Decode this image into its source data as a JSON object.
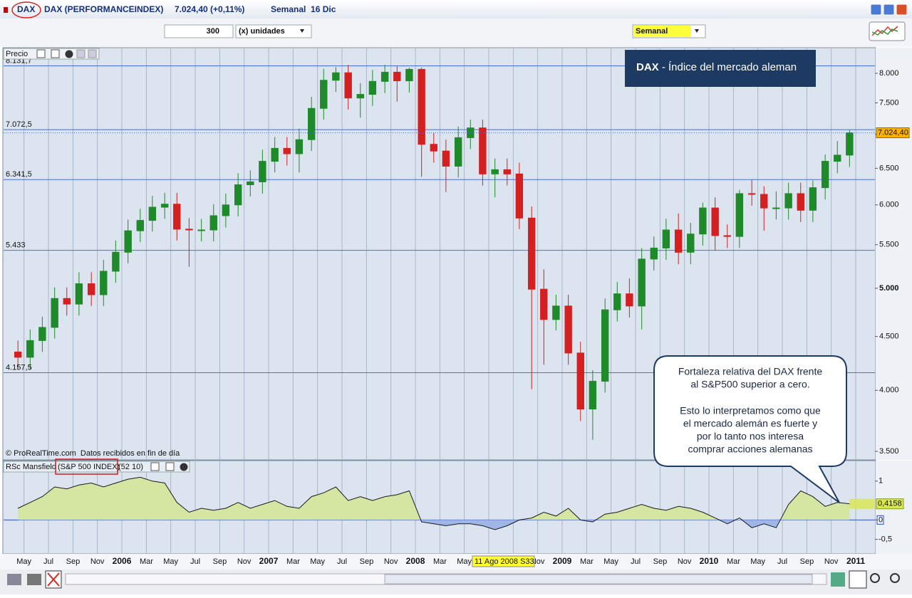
{
  "window": {
    "symbol": "DAX",
    "name": "DAX (PERFORMANCEINDEX)",
    "quote": "7.024,40 (+0,11%)",
    "period": "Semanal  16 Dic"
  },
  "toolbar": {
    "units_value": "300",
    "units_label": "(x) unidades",
    "timeframe": "Semanal"
  },
  "annotations": {
    "title_bold": "DAX",
    "title_rest": " - Índice del mercado aleman",
    "callout": [
      [
        "Fortaleza relativa del DAX frente",
        "al S&P500 superior a cero."
      ],
      [
        "Esto lo interpretamos como que",
        "el mercado alemán es fuerte y",
        "por lo tanto nos interesa",
        "comprar acciones alemanas"
      ]
    ]
  },
  "chart_data": [
    {
      "type": "candlestick",
      "panel_label": "Precio",
      "source": "© ProRealTime.com  Datos recibidos en fin de día",
      "cursor_label": "11 Ago 2008 S33",
      "x": [
        2005.292,
        2005.375,
        2005.458,
        2005.542,
        2005.625,
        2005.708,
        2005.792,
        2005.875,
        2005.958,
        2006.042,
        2006.125,
        2006.208,
        2006.292,
        2006.375,
        2006.458,
        2006.542,
        2006.625,
        2006.708,
        2006.792,
        2006.875,
        2006.958,
        2007.042,
        2007.125,
        2007.208,
        2007.292,
        2007.375,
        2007.458,
        2007.542,
        2007.625,
        2007.708,
        2007.792,
        2007.875,
        2007.958,
        2008.042,
        2008.125,
        2008.208,
        2008.292,
        2008.375,
        2008.458,
        2008.542,
        2008.625,
        2008.708,
        2008.792,
        2008.875,
        2008.958,
        2009.042,
        2009.125,
        2009.208,
        2009.292,
        2009.375,
        2009.458,
        2009.542,
        2009.625,
        2009.708,
        2009.792,
        2009.875,
        2009.958,
        2010.042,
        2010.125,
        2010.208,
        2010.292,
        2010.375,
        2010.458,
        2010.542,
        2010.625,
        2010.708,
        2010.792,
        2010.875,
        2010.958
      ],
      "open": [
        4350,
        4300,
        4460,
        4590,
        4890,
        4830,
        5050,
        4930,
        5190,
        5410,
        5670,
        5800,
        5970,
        6010,
        5690,
        5680,
        5680,
        5860,
        6000,
        6270,
        6310,
        6600,
        6790,
        6710,
        6920,
        7410,
        7880,
        8010,
        7580,
        7640,
        7860,
        8020,
        7870,
        8070,
        6850,
        6750,
        6530,
        6950,
        7100,
        6420,
        6480,
        6420,
        5830,
        4990,
        4670,
        4810,
        4340,
        3840,
        4080,
        4770,
        4940,
        4810,
        5330,
        5460,
        5680,
        5410,
        5630,
        5960,
        5610,
        5600,
        6150,
        6140,
        5960,
        5960,
        6150,
        5930,
        6230,
        6600,
        6690
      ],
      "high": [
        4460,
        4570,
        4700,
        5010,
        5010,
        5180,
        5180,
        5320,
        5550,
        5810,
        5950,
        6120,
        6160,
        6160,
        5830,
        5820,
        6010,
        6150,
        6430,
        6470,
        6770,
        6960,
        6960,
        7090,
        7600,
        8080,
        8110,
        8150,
        7830,
        8060,
        8150,
        8130,
        8100,
        8100,
        7020,
        6920,
        7120,
        7230,
        7230,
        6640,
        6640,
        6580,
        5980,
        5210,
        4930,
        4930,
        4450,
        4180,
        4890,
        5070,
        5110,
        5460,
        5600,
        5820,
        5890,
        5770,
        6030,
        6100,
        5750,
        6200,
        6340,
        6250,
        6180,
        6300,
        6300,
        6330,
        6700,
        6900,
        7070
      ],
      "low": [
        4190,
        4190,
        4350,
        4480,
        4710,
        4710,
        4810,
        4810,
        5060,
        5280,
        5530,
        5660,
        5820,
        5550,
        5240,
        5540,
        5540,
        5710,
        5850,
        6110,
        6150,
        6440,
        6540,
        6440,
        6750,
        7230,
        7680,
        7390,
        7260,
        7450,
        7660,
        7520,
        7670,
        6380,
        6580,
        6170,
        6370,
        6780,
        6260,
        6100,
        6260,
        5690,
        4010,
        4230,
        4560,
        4230,
        3740,
        3590,
        3980,
        4650,
        4690,
        4570,
        5200,
        5320,
        5270,
        5270,
        5490,
        5430,
        5460,
        5460,
        5990,
        5670,
        5810,
        5810,
        5780,
        5780,
        6070,
        6430,
        6520
      ],
      "close": [
        4300,
        4460,
        4590,
        4890,
        4830,
        5050,
        4930,
        5190,
        5410,
        5670,
        5800,
        5970,
        6010,
        5690,
        5680,
        5680,
        5860,
        6000,
        6270,
        6310,
        6600,
        6790,
        6710,
        6920,
        7410,
        7880,
        8010,
        7580,
        7640,
        7860,
        8020,
        7870,
        8070,
        6850,
        6750,
        6530,
        6950,
        7100,
        6420,
        6480,
        6420,
        5830,
        4990,
        4670,
        4810,
        4340,
        3840,
        4080,
        4770,
        4940,
        4810,
        5330,
        5460,
        5680,
        5410,
        5630,
        5960,
        5610,
        5600,
        6150,
        6140,
        5960,
        5960,
        6150,
        5930,
        6230,
        6600,
        6690,
        7024.4
      ],
      "xlim": [
        2005.194,
        2011.131
      ],
      "ylim": [
        3441,
        8448
      ],
      "log_scale": true,
      "yticks": [
        {
          "value": 3500,
          "label": "3.500"
        },
        {
          "value": 4000,
          "label": "4.000"
        },
        {
          "value": 4500,
          "label": "4.500"
        },
        {
          "value": 5000,
          "label": "5.000"
        },
        {
          "value": 5500,
          "label": "5.500"
        },
        {
          "value": 6000,
          "label": "6.000"
        },
        {
          "value": 6500,
          "label": "6.500"
        },
        {
          "value": 7000,
          "label": "7.000"
        },
        {
          "value": 7500,
          "label": "7.500"
        },
        {
          "value": 8000,
          "label": "8.000"
        }
      ],
      "levels": [
        {
          "value": 8131.7,
          "label": "8.131,7"
        },
        {
          "value": 7072.5,
          "label": "7.072,5"
        },
        {
          "value": 6341.5,
          "label": "6.341,5"
        },
        {
          "value": 5433,
          "label": "5.433"
        },
        {
          "value": 4157.5,
          "label": "4.157,5"
        }
      ],
      "last_value": {
        "value": 7024.4,
        "label": "7.024,40"
      },
      "up_color": "#1f8a2a",
      "down_color": "#d42020",
      "level_color": "#4a6ee0"
    },
    {
      "type": "area",
      "label": "RSc Mansfield",
      "index": "(S&P 500 INDEX)",
      "params": "(52 10)",
      "x": [
        2005.292,
        2005.375,
        2005.458,
        2005.542,
        2005.625,
        2005.708,
        2005.792,
        2005.875,
        2005.958,
        2006.042,
        2006.125,
        2006.208,
        2006.292,
        2006.375,
        2006.458,
        2006.542,
        2006.625,
        2006.708,
        2006.792,
        2006.875,
        2006.958,
        2007.042,
        2007.125,
        2007.208,
        2007.292,
        2007.375,
        2007.458,
        2007.542,
        2007.625,
        2007.708,
        2007.792,
        2007.875,
        2007.958,
        2008.042,
        2008.125,
        2008.208,
        2008.292,
        2008.375,
        2008.458,
        2008.542,
        2008.625,
        2008.708,
        2008.792,
        2008.875,
        2008.958,
        2009.042,
        2009.125,
        2009.208,
        2009.292,
        2009.375,
        2009.458,
        2009.542,
        2009.625,
        2009.708,
        2009.792,
        2009.875,
        2009.958,
        2010.042,
        2010.125,
        2010.208,
        2010.292,
        2010.375,
        2010.458,
        2010.542,
        2010.625,
        2010.708,
        2010.792,
        2010.875,
        2010.958
      ],
      "values": [
        0.3,
        0.45,
        0.6,
        0.85,
        0.8,
        0.9,
        0.95,
        0.85,
        0.95,
        1.05,
        1.1,
        1.0,
        0.95,
        0.45,
        0.2,
        0.3,
        0.25,
        0.3,
        0.45,
        0.3,
        0.4,
        0.5,
        0.35,
        0.3,
        0.6,
        0.7,
        0.85,
        0.5,
        0.6,
        0.5,
        0.6,
        0.65,
        0.75,
        -0.05,
        -0.1,
        -0.15,
        -0.1,
        -0.1,
        -0.15,
        -0.25,
        -0.15,
        0.0,
        0.05,
        0.2,
        0.1,
        0.3,
        0.0,
        -0.05,
        0.15,
        0.2,
        0.3,
        0.4,
        0.3,
        0.25,
        0.35,
        0.3,
        0.2,
        0.05,
        -0.1,
        0.05,
        -0.2,
        -0.1,
        -0.2,
        0.4,
        0.75,
        0.6,
        0.35,
        0.45,
        0.4158
      ],
      "xlim": [
        2005.194,
        2011.131
      ],
      "ylim": [
        -0.855,
        1.51
      ],
      "yticks": [
        {
          "value": -0.5,
          "label": "-0,5"
        },
        0,
        1
      ],
      "last_value": {
        "value": 0.4158,
        "label": "0,4158"
      },
      "xticks": [
        {
          "value": 2005.333,
          "label": "May"
        },
        {
          "value": 2005.5,
          "label": "Jul"
        },
        {
          "value": 2005.667,
          "label": "Sep"
        },
        {
          "value": 2005.833,
          "label": "Nov"
        },
        2006,
        {
          "value": 2006.167,
          "label": "Mar"
        },
        {
          "value": 2006.333,
          "label": "May"
        },
        {
          "value": 2006.5,
          "label": "Jul"
        },
        {
          "value": 2006.667,
          "label": "Sep"
        },
        {
          "value": 2006.833,
          "label": "Nov"
        },
        2007,
        {
          "value": 2007.167,
          "label": "Mar"
        },
        {
          "value": 2007.333,
          "label": "May"
        },
        {
          "value": 2007.5,
          "label": "Jul"
        },
        {
          "value": 2007.667,
          "label": "Sep"
        },
        {
          "value": 2007.833,
          "label": "Nov"
        },
        2008,
        {
          "value": 2008.167,
          "label": "Mar"
        },
        {
          "value": 2008.333,
          "label": "May"
        },
        {
          "value": 2008.5,
          "label": "Jul"
        },
        {
          "value": 2008.667,
          "label": "Sep"
        },
        {
          "value": 2008.833,
          "label": "Nov"
        },
        2009,
        {
          "value": 2009.167,
          "label": "Mar"
        },
        {
          "value": 2009.333,
          "label": "May"
        },
        {
          "value": 2009.5,
          "label": "Jul"
        },
        {
          "value": 2009.667,
          "label": "Sep"
        },
        {
          "value": 2009.833,
          "label": "Nov"
        },
        2010,
        {
          "value": 2010.167,
          "label": "Mar"
        },
        {
          "value": 2010.333,
          "label": "May"
        },
        {
          "value": 2010.5,
          "label": "Jul"
        },
        {
          "value": 2010.667,
          "label": "Sep"
        },
        {
          "value": 2010.833,
          "label": "Nov"
        },
        2011
      ],
      "pos_color": "#d5e5a2",
      "neg_color": "#9fb6e6",
      "line_color": "#1a1a1a",
      "label_color": "#d8e84c"
    }
  ]
}
